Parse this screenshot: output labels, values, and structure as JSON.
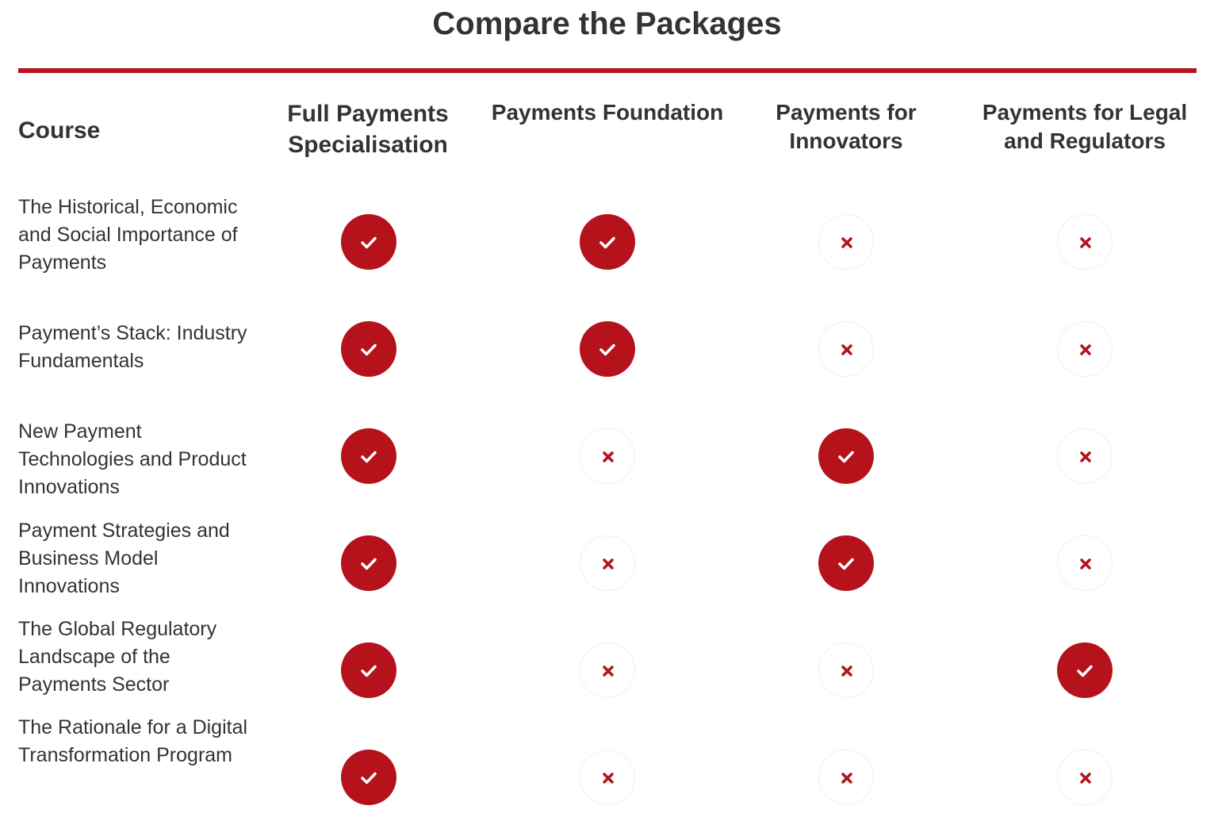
{
  "title": "Compare the Packages",
  "course_header": "Course",
  "colors": {
    "accent": "#b5121b",
    "text": "#333333",
    "no_border": "#efefef"
  },
  "icons": {
    "included": "check-icon",
    "excluded": "cross-icon"
  },
  "packages": [
    {
      "name": "Full Payments Specialisation"
    },
    {
      "name": "Payments Foundation"
    },
    {
      "name": "Payments for Innovators"
    },
    {
      "name": "Payments for Legal and Regulators"
    }
  ],
  "courses": [
    {
      "name": "The Historical, Economic and Social Importance of Payments",
      "included": [
        true,
        true,
        false,
        false
      ]
    },
    {
      "name": "Payment’s Stack: Industry Fundamentals",
      "included": [
        true,
        true,
        false,
        false
      ]
    },
    {
      "name": "New Payment Technologies and Product Innovations",
      "included": [
        true,
        false,
        true,
        false
      ]
    },
    {
      "name": "Payment Strategies and Business Model Innovations",
      "included": [
        true,
        false,
        true,
        false
      ]
    },
    {
      "name": "The Global Regulatory Landscape of the Payments Sector",
      "included": [
        true,
        false,
        false,
        true
      ]
    },
    {
      "name": "The Rationale for a Digital Transformation Program",
      "included": [
        true,
        false,
        false,
        false
      ]
    }
  ]
}
